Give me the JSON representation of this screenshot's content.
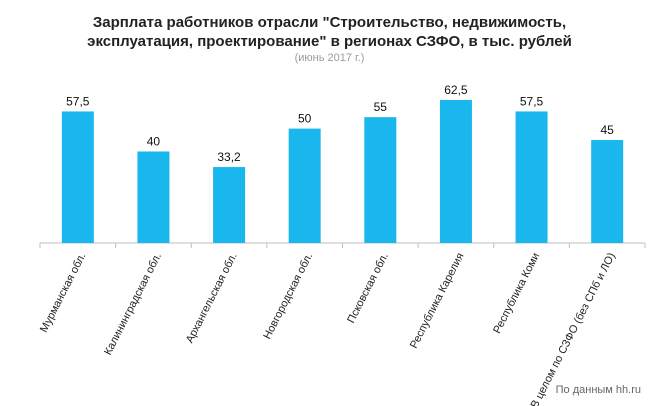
{
  "chart_data": {
    "type": "bar",
    "title_line1": "Зарплата работников отрасли \"Строительство,  недвижимость,",
    "title_line2": "эксплуатация, проектирование\"  в регионах СЗФО, в тыс. рублей",
    "subtitle": "(июнь 2017 г.)",
    "source": "По данным hh.ru",
    "categories": [
      "Мурманская обл.",
      "Калининградская обл.",
      "Архангельская обл.",
      "Новгородская обл.",
      "Псковская обл.",
      "Республика Карелия",
      "Республика Коми",
      "В целом по СЗФО (без СПб и ЛО)"
    ],
    "values": [
      57.5,
      40,
      33.2,
      50,
      55,
      62.5,
      57.5,
      45
    ],
    "value_labels": [
      "57,5",
      "40",
      "33,2",
      "50",
      "55",
      "62,5",
      "57,5",
      "45"
    ],
    "ylim": [
      0,
      62.5
    ],
    "bar_color": "#1ab7ee",
    "axis_color": "#bfbfbf",
    "grid": false,
    "xlabel": "",
    "ylabel": ""
  }
}
